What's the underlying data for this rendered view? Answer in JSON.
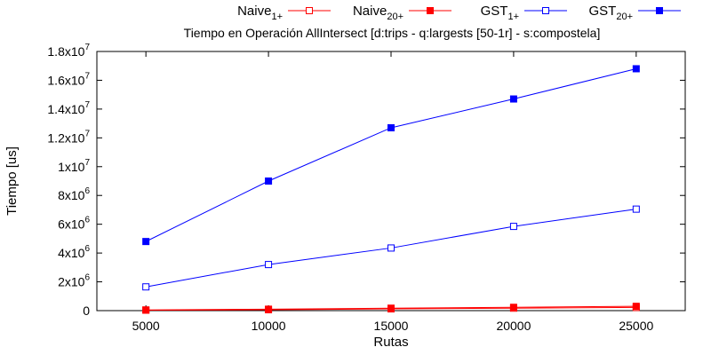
{
  "chart_data": {
    "type": "line",
    "title": "Tiempo en Operación AllIntersect [d:trips - q:largests [50-1r] - s:compostela]",
    "xlabel": "Rutas",
    "ylabel": "Tiempo [us]",
    "xlim": [
      3000,
      27000
    ],
    "ylim": [
      0,
      18000000
    ],
    "x": [
      5000,
      10000,
      15000,
      20000,
      25000
    ],
    "x_tick_labels": [
      "5000",
      "10000",
      "15000",
      "20000",
      "25000"
    ],
    "y_ticks": [
      {
        "value": 0,
        "base": "0",
        "exp": ""
      },
      {
        "value": 2000000,
        "base": "2x10",
        "exp": "6"
      },
      {
        "value": 4000000,
        "base": "4x10",
        "exp": "6"
      },
      {
        "value": 6000000,
        "base": "6x10",
        "exp": "6"
      },
      {
        "value": 8000000,
        "base": "8x10",
        "exp": "6"
      },
      {
        "value": 10000000,
        "base": "1x10",
        "exp": "7"
      },
      {
        "value": 12000000,
        "base": "1.2x10",
        "exp": "7"
      },
      {
        "value": 14000000,
        "base": "1.4x10",
        "exp": "7"
      },
      {
        "value": 16000000,
        "base": "1.6x10",
        "exp": "7"
      },
      {
        "value": 18000000,
        "base": "1.8x10",
        "exp": "7"
      }
    ],
    "grid": false,
    "legend_position": "top",
    "series": [
      {
        "name": "Naive",
        "sub": "1+",
        "color": "#ff0000",
        "marker": "open-square",
        "values": [
          30000,
          60000,
          120000,
          170000,
          220000
        ]
      },
      {
        "name": "Naive",
        "sub": "20+",
        "color": "#ff0000",
        "marker": "filled-square",
        "values": [
          50000,
          100000,
          170000,
          230000,
          300000
        ]
      },
      {
        "name": "GST",
        "sub": "1+",
        "color": "#0000ff",
        "marker": "open-square",
        "values": [
          1650000,
          3200000,
          4350000,
          5850000,
          7050000
        ]
      },
      {
        "name": "GST",
        "sub": "20+",
        "color": "#0000ff",
        "marker": "filled-square",
        "values": [
          4800000,
          9000000,
          12700000,
          14700000,
          16800000
        ]
      }
    ]
  }
}
